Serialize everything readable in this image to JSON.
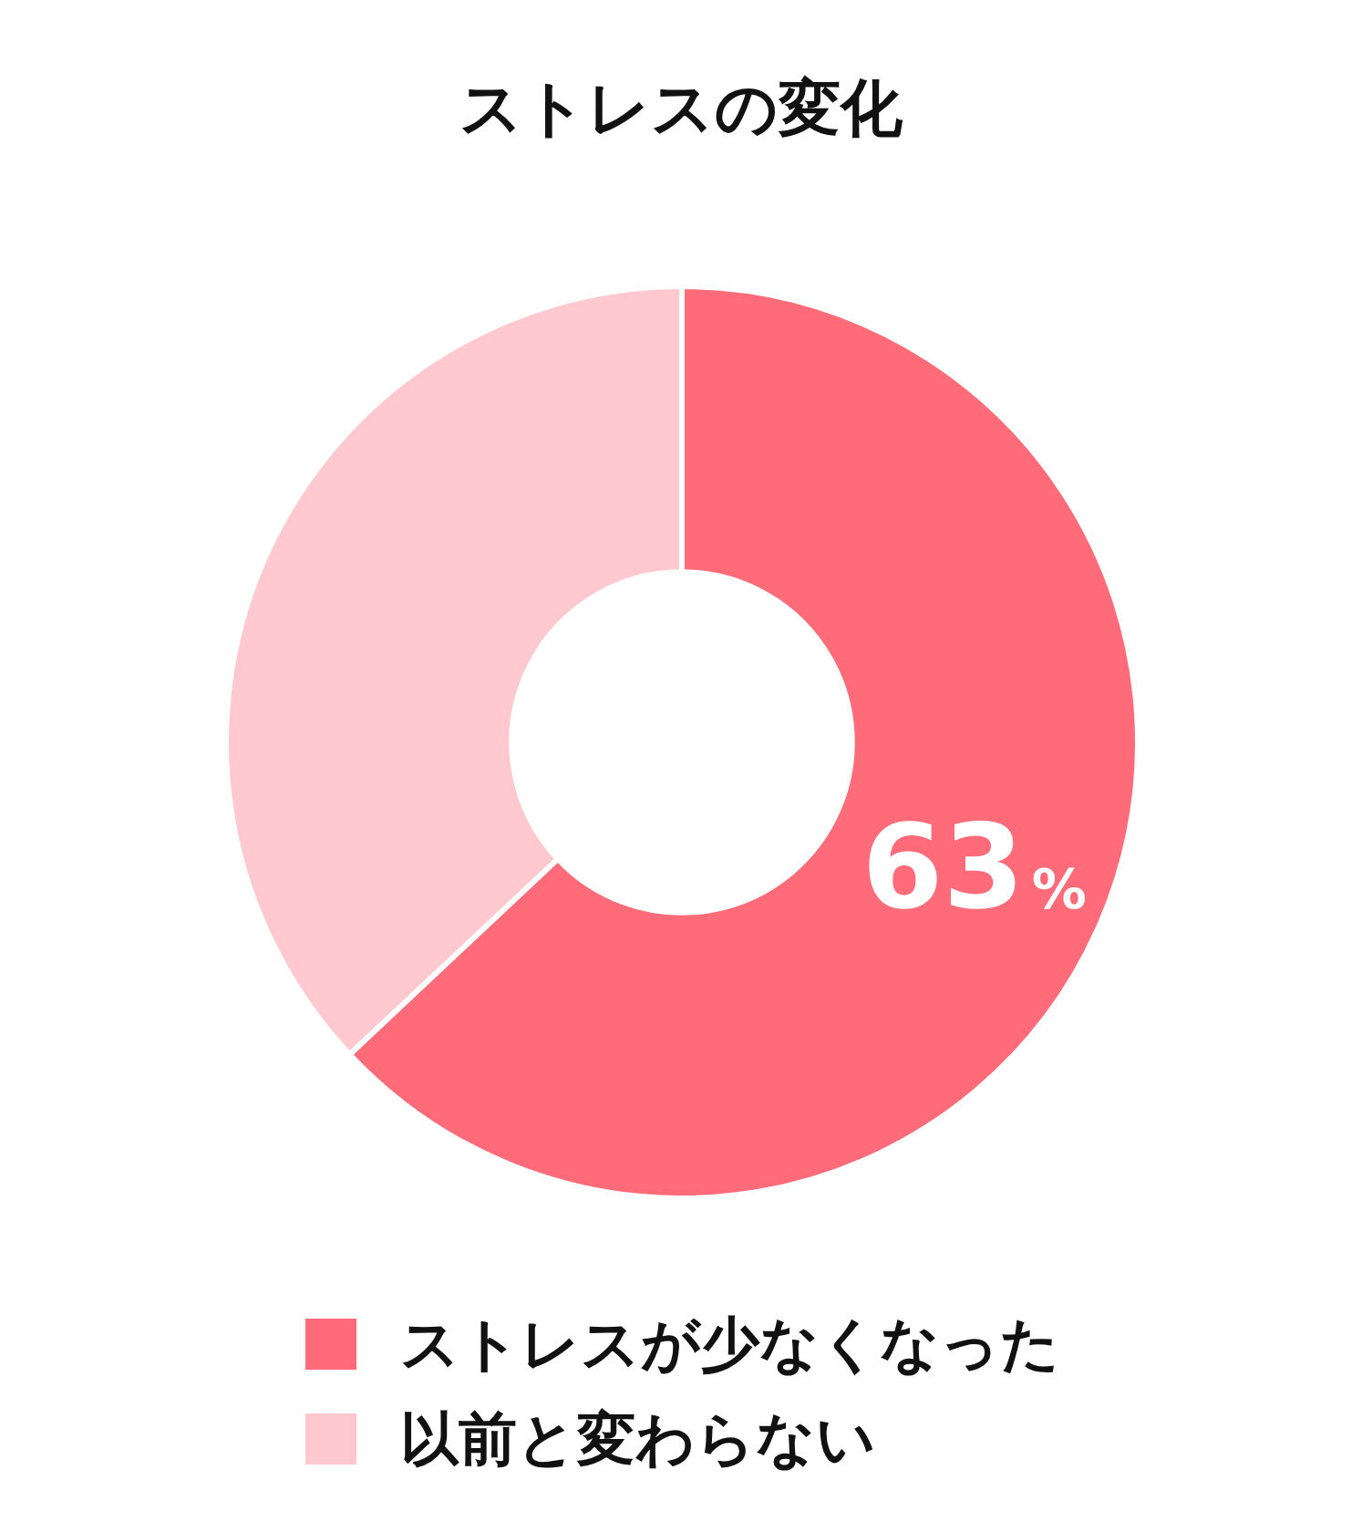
{
  "chart_data": {
    "type": "donut",
    "title": "ストレスの変化",
    "categories": [
      "ストレスが少なくなった",
      "以前と変わらない"
    ],
    "values": [
      63,
      37
    ],
    "colors": [
      "#ff6b78",
      "#ffc9cf"
    ],
    "value_labels": [
      "63%",
      null
    ],
    "legend": "bottom"
  }
}
